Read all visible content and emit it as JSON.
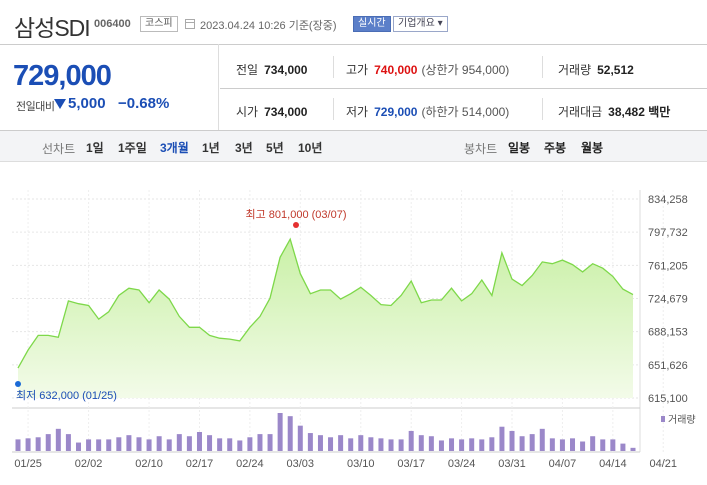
{
  "header": {
    "title": "삼성SDI",
    "code": "006400",
    "market": "코스피",
    "datetime": "2023.04.24 10:26 기준(장중)",
    "live": "실시간",
    "company_info": "기업개요 ▾"
  },
  "quote": {
    "price": "729,000",
    "change_label": "전일대비",
    "change_value": "5,000",
    "change_pct": "−0.68%",
    "prev_close_label": "전일",
    "prev_close": "734,000",
    "high_label": "고가",
    "high": "740,000",
    "upper_limit": "(상한가 954,000)",
    "volume_label": "거래량",
    "volume": "52,512",
    "open_label": "시가",
    "open": "734,000",
    "low_label": "저가",
    "low": "729,000",
    "lower_limit": "(하한가 514,000)",
    "amount_label": "거래대금",
    "amount": "38,482 백만"
  },
  "tabs": {
    "line_label": "선차트",
    "line_periods": [
      "1일",
      "1주일",
      "3개월",
      "1년",
      "3년",
      "5년",
      "10년"
    ],
    "active_period": "3개월",
    "candle_label": "봉차트",
    "candle_periods": [
      "일봉",
      "주봉",
      "월봉"
    ]
  },
  "colors": {
    "line": "#7ed84a",
    "fill_top": "#c9f0a6",
    "fill_bottom": "#f3fbe9",
    "volume": "#9b88c9",
    "high_dot": "#e53030",
    "low_dot": "#1b6ad6"
  },
  "chart_data": {
    "type": "area",
    "y_ticks": [
      834258,
      797732,
      761205,
      724679,
      688153,
      651626,
      615100
    ],
    "y_tick_labels": [
      "834,258",
      "797,732",
      "761,205",
      "724,679",
      "688,153",
      "651,626",
      "615,100"
    ],
    "ylim": [
      615100,
      834258
    ],
    "x_tick_labels": [
      "01/25",
      "02/02",
      "02/10",
      "02/17",
      "02/24",
      "03/03",
      "03/10",
      "03/17",
      "03/24",
      "03/31",
      "04/07",
      "04/14",
      "04/21"
    ],
    "x_tick_index": [
      1,
      7,
      13,
      18,
      23,
      28,
      34,
      39,
      44,
      49,
      54,
      59,
      64
    ],
    "values": [
      648000,
      668000,
      684000,
      684000,
      682000,
      722000,
      719000,
      717000,
      702000,
      710000,
      728000,
      736000,
      734000,
      720000,
      734000,
      724000,
      705000,
      693000,
      693000,
      684000,
      681000,
      680000,
      678000,
      693000,
      705000,
      725000,
      770000,
      790000,
      752000,
      730000,
      734000,
      734000,
      724000,
      730000,
      737000,
      728000,
      718000,
      717000,
      728000,
      744000,
      720000,
      723000,
      723000,
      736000,
      722000,
      730000,
      745000,
      728000,
      775000,
      746000,
      739000,
      750000,
      765000,
      763000,
      767000,
      762000,
      754000,
      763000,
      758000,
      749000,
      735000,
      729000
    ],
    "high_annotation": "최고 801,000 (03/07)",
    "low_annotation": "최저 632,000 (01/25)",
    "volume_label": "거래량",
    "volume": [
      11,
      12,
      13,
      16,
      21,
      16,
      8,
      11,
      11,
      11,
      13,
      15,
      13,
      11,
      14,
      11,
      16,
      14,
      18,
      15,
      12,
      12,
      10,
      13,
      16,
      16,
      36,
      33,
      24,
      17,
      15,
      13,
      15,
      12,
      15,
      13,
      12,
      11,
      11,
      19,
      15,
      14,
      10,
      12,
      11,
      12,
      11,
      13,
      23,
      19,
      14,
      16,
      21,
      12,
      11,
      12,
      9,
      14,
      11,
      11,
      7,
      3
    ]
  }
}
